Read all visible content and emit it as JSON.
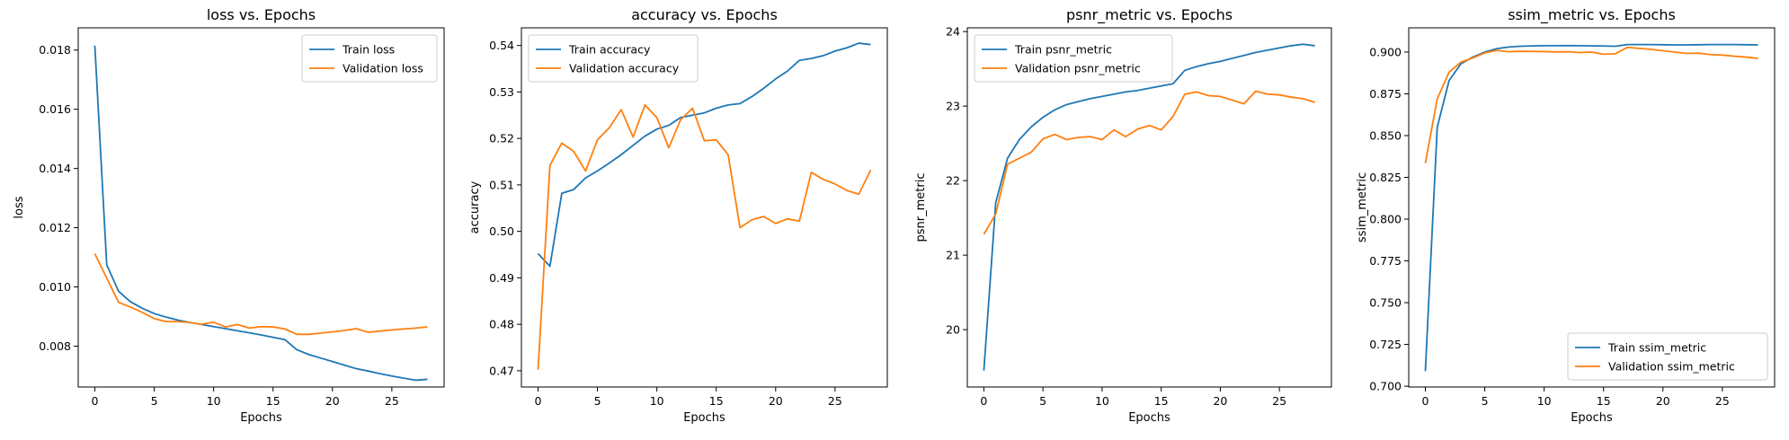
{
  "chart_data": [
    {
      "type": "line",
      "title": "loss vs. Epochs",
      "xlabel": "Epochs",
      "ylabel": "loss",
      "xlim": [
        -1.4,
        29.4
      ],
      "ylim": [
        0.00662,
        0.01875
      ],
      "xticks": [
        0,
        5,
        10,
        15,
        20,
        25
      ],
      "yticks": [
        0.008,
        0.01,
        0.012,
        0.014,
        0.016,
        0.018
      ],
      "ytick_labels": [
        "0.008",
        "0.010",
        "0.012",
        "0.014",
        "0.016",
        "0.018"
      ],
      "legend": "top-right",
      "x": [
        0,
        1,
        2,
        3,
        4,
        5,
        6,
        7,
        8,
        9,
        10,
        11,
        12,
        13,
        14,
        15,
        16,
        17,
        18,
        19,
        20,
        21,
        22,
        23,
        24,
        25,
        26,
        27,
        28
      ],
      "series": [
        {
          "name": "Train loss",
          "color": "#1f77b4",
          "values": [
            0.01815,
            0.01075,
            0.00985,
            0.0095,
            0.00928,
            0.0091,
            0.00898,
            0.00888,
            0.0088,
            0.00873,
            0.00866,
            0.00859,
            0.00852,
            0.00845,
            0.00838,
            0.0083,
            0.00822,
            0.00788,
            0.00772,
            0.0076,
            0.00748,
            0.00736,
            0.00724,
            0.00716,
            0.00707,
            0.00699,
            0.00692,
            0.00685,
            0.00688
          ]
        },
        {
          "name": "Validation loss",
          "color": "#ff7f0e",
          "values": [
            0.01112,
            0.0103,
            0.00948,
            0.00932,
            0.00914,
            0.00893,
            0.00883,
            0.00883,
            0.0088,
            0.00874,
            0.00881,
            0.00865,
            0.00873,
            0.00861,
            0.00866,
            0.00865,
            0.00858,
            0.0084,
            0.0084,
            0.00844,
            0.00848,
            0.00853,
            0.00859,
            0.00847,
            0.00851,
            0.00855,
            0.00858,
            0.00861,
            0.00865
          ]
        }
      ]
    },
    {
      "type": "line",
      "title": "accuracy vs. Epochs",
      "xlabel": "Epochs",
      "ylabel": "accuracy",
      "xlim": [
        -1.4,
        29.4
      ],
      "ylim": [
        0.4665,
        0.5438
      ],
      "xticks": [
        0,
        5,
        10,
        15,
        20,
        25
      ],
      "yticks": [
        0.47,
        0.48,
        0.49,
        0.5,
        0.51,
        0.52,
        0.53,
        0.54
      ],
      "ytick_labels": [
        "0.47",
        "0.48",
        "0.49",
        "0.50",
        "0.51",
        "0.52",
        "0.53",
        "0.54"
      ],
      "legend": "top-left",
      "x": [
        0,
        1,
        2,
        3,
        4,
        5,
        6,
        7,
        8,
        9,
        10,
        11,
        12,
        13,
        14,
        15,
        16,
        17,
        18,
        19,
        20,
        21,
        22,
        23,
        24,
        25,
        26,
        27,
        28
      ],
      "series": [
        {
          "name": "Train accuracy",
          "color": "#1f77b4",
          "values": [
            0.4952,
            0.4925,
            0.5082,
            0.509,
            0.5115,
            0.513,
            0.5147,
            0.5165,
            0.5185,
            0.5205,
            0.522,
            0.5228,
            0.5245,
            0.525,
            0.5255,
            0.5265,
            0.5272,
            0.5275,
            0.529,
            0.5308,
            0.5328,
            0.5345,
            0.5368,
            0.5372,
            0.5378,
            0.5388,
            0.5395,
            0.5405,
            0.5402
          ]
        },
        {
          "name": "Validation accuracy",
          "color": "#ff7f0e",
          "values": [
            0.4702,
            0.5142,
            0.519,
            0.5172,
            0.513,
            0.5197,
            0.5223,
            0.5262,
            0.5203,
            0.5272,
            0.5245,
            0.518,
            0.524,
            0.5265,
            0.5195,
            0.5197,
            0.5165,
            0.5008,
            0.5025,
            0.5032,
            0.5017,
            0.5027,
            0.5022,
            0.5127,
            0.5112,
            0.5102,
            0.5088,
            0.508,
            0.5132
          ]
        }
      ]
    },
    {
      "type": "line",
      "title": "psnr_metric vs. Epochs",
      "xlabel": "Epochs",
      "ylabel": "psnr_metric",
      "xlim": [
        -1.4,
        29.4
      ],
      "ylim": [
        19.23,
        24.05
      ],
      "xticks": [
        0,
        5,
        10,
        15,
        20,
        25
      ],
      "yticks": [
        20,
        21,
        22,
        23,
        24
      ],
      "ytick_labels": [
        "20",
        "21",
        "22",
        "23",
        "24"
      ],
      "legend": "top-left",
      "x": [
        0,
        1,
        2,
        3,
        4,
        5,
        6,
        7,
        8,
        9,
        10,
        11,
        12,
        13,
        14,
        15,
        16,
        17,
        18,
        19,
        20,
        21,
        22,
        23,
        24,
        25,
        26,
        27,
        28
      ],
      "series": [
        {
          "name": "Train psnr_metric",
          "color": "#1f77b4",
          "values": [
            19.45,
            21.7,
            22.3,
            22.55,
            22.72,
            22.85,
            22.95,
            23.02,
            23.06,
            23.1,
            23.13,
            23.16,
            23.19,
            23.21,
            23.24,
            23.27,
            23.3,
            23.48,
            23.53,
            23.57,
            23.6,
            23.64,
            23.68,
            23.72,
            23.75,
            23.78,
            23.81,
            23.83,
            23.81
          ]
        },
        {
          "name": "Validation psnr_metric",
          "color": "#ff7f0e",
          "values": [
            21.28,
            21.55,
            22.22,
            22.3,
            22.38,
            22.56,
            22.62,
            22.55,
            22.58,
            22.59,
            22.55,
            22.68,
            22.59,
            22.69,
            22.74,
            22.68,
            22.86,
            23.16,
            23.19,
            23.14,
            23.13,
            23.08,
            23.03,
            23.2,
            23.16,
            23.15,
            23.12,
            23.1,
            23.05
          ]
        }
      ]
    },
    {
      "type": "line",
      "title": "ssim_metric vs. Epochs",
      "xlabel": "Epochs",
      "ylabel": "ssim_metric",
      "xlim": [
        -1.4,
        29.4
      ],
      "ylim": [
        0.6995,
        0.9145
      ],
      "xticks": [
        0,
        5,
        10,
        15,
        20,
        25
      ],
      "yticks": [
        0.7,
        0.725,
        0.75,
        0.775,
        0.8,
        0.825,
        0.85,
        0.875,
        0.9
      ],
      "ytick_labels": [
        "0.700",
        "0.725",
        "0.750",
        "0.775",
        "0.800",
        "0.825",
        "0.850",
        "0.875",
        "0.900"
      ],
      "legend": "bottom-right",
      "x": [
        0,
        1,
        2,
        3,
        4,
        5,
        6,
        7,
        8,
        9,
        10,
        11,
        12,
        13,
        14,
        15,
        16,
        17,
        18,
        19,
        20,
        21,
        22,
        23,
        24,
        25,
        26,
        27,
        28
      ],
      "series": [
        {
          "name": "Train ssim_metric",
          "color": "#1f77b4",
          "values": [
            0.709,
            0.855,
            0.883,
            0.893,
            0.897,
            0.9,
            0.902,
            0.903,
            0.9035,
            0.9037,
            0.9038,
            0.9038,
            0.9039,
            0.9038,
            0.9037,
            0.9036,
            0.9035,
            0.9045,
            0.9045,
            0.9045,
            0.9044,
            0.9043,
            0.9043,
            0.9044,
            0.9045,
            0.9045,
            0.9045,
            0.9044,
            0.9043
          ]
        },
        {
          "name": "Validation ssim_metric",
          "color": "#ff7f0e",
          "values": [
            0.8335,
            0.872,
            0.888,
            0.894,
            0.8965,
            0.8995,
            0.901,
            0.9002,
            0.9005,
            0.9004,
            0.9003,
            0.9001,
            0.9002,
            0.8997,
            0.9,
            0.8987,
            0.899,
            0.9028,
            0.9022,
            0.9016,
            0.9008,
            0.9,
            0.8992,
            0.8993,
            0.8985,
            0.8982,
            0.8975,
            0.897,
            0.8962
          ]
        }
      ]
    }
  ]
}
